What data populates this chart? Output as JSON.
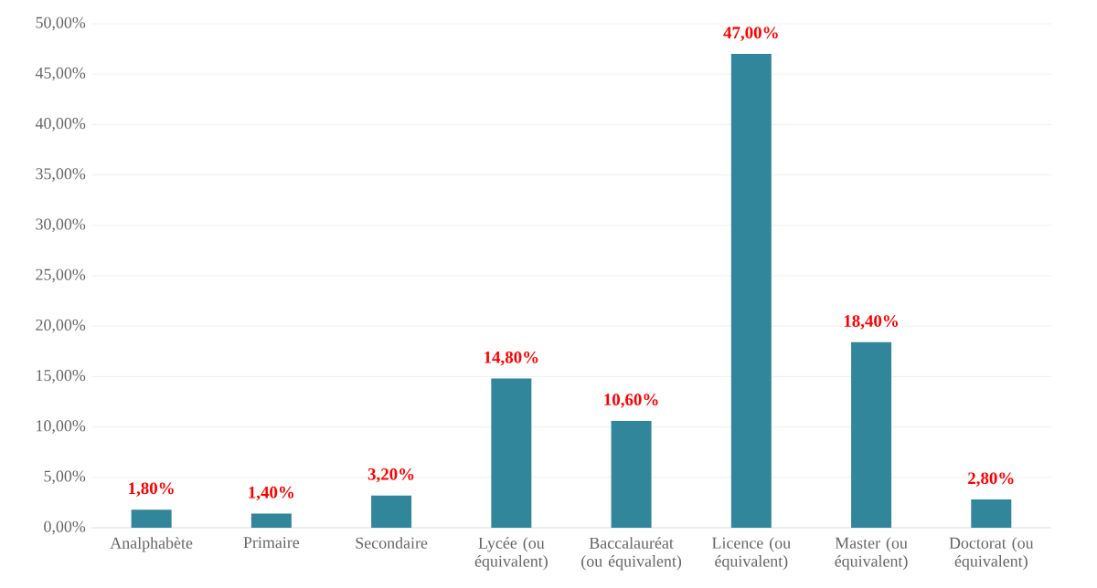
{
  "chart_data": {
    "type": "bar",
    "categories": [
      "Analphabète",
      "Primaire",
      "Secondaire",
      "Lycée (ou équivalent)",
      "Baccalauréat (ou équivalent)",
      "Licence (ou équivalent)",
      "Master (ou équivalent)",
      "Doctorat (ou équivalent)"
    ],
    "values": [
      1.8,
      1.4,
      3.2,
      14.8,
      10.6,
      47.0,
      18.4,
      2.8
    ],
    "value_labels": [
      "1,80%",
      "1,40%",
      "3,20%",
      "14,80%",
      "10,60%",
      "47,00%",
      "18,40%",
      "2,80%"
    ],
    "color": "#31869b",
    "ylim": [
      0,
      50
    ],
    "yticks": [
      {
        "value": 0,
        "label": "0,00%"
      },
      {
        "value": 5,
        "label": "5,00%"
      },
      {
        "value": 10,
        "label": "10,00%"
      },
      {
        "value": 15,
        "label": "15,00%"
      },
      {
        "value": 20,
        "label": "20,00%"
      },
      {
        "value": 25,
        "label": "25,00%"
      },
      {
        "value": 30,
        "label": "30,00%"
      },
      {
        "value": 35,
        "label": "35,00%"
      },
      {
        "value": 40,
        "label": "40,00%"
      },
      {
        "value": 45,
        "label": "45,00%"
      },
      {
        "value": 50,
        "label": "50,00%"
      }
    ],
    "grid": "y"
  }
}
